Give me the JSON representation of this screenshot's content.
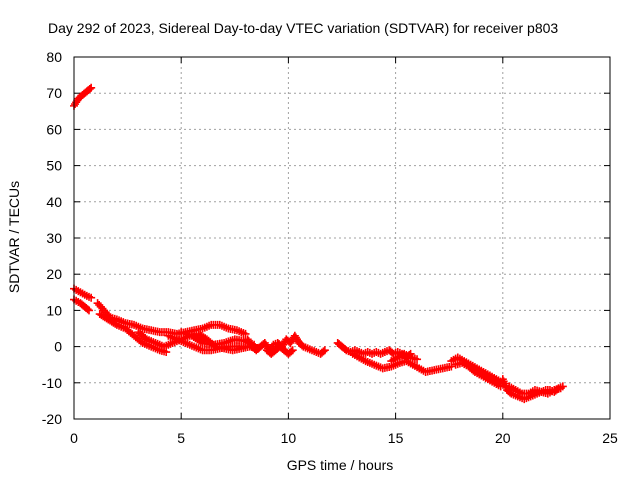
{
  "chart_data": {
    "type": "scatter",
    "title": "Day 292 of 2023, Sidereal Day-to-day VTEC variation (SDTVAR) for receiver p803",
    "xlabel": "GPS time / hours",
    "ylabel": "SDTVAR / TECUs",
    "xlim": [
      0,
      25
    ],
    "ylim": [
      -20,
      80
    ],
    "xticks": [
      0,
      5,
      10,
      15,
      20,
      25
    ],
    "yticks": [
      -20,
      -10,
      0,
      10,
      20,
      30,
      40,
      50,
      60,
      70,
      80
    ],
    "grid": true,
    "marker": "+",
    "series": [
      {
        "name": "SDTVAR",
        "color": "#ff0000",
        "segments": [
          [
            [
              0.0,
              66.5
            ],
            [
              0.2,
              68.5
            ],
            [
              0.4,
              69.5
            ],
            [
              0.6,
              70.5
            ],
            [
              0.8,
              71.5
            ]
          ],
          [
            [
              0.0,
              16
            ],
            [
              0.3,
              15
            ],
            [
              0.6,
              14
            ],
            [
              0.8,
              13.5
            ]
          ],
          [
            [
              0.0,
              13
            ],
            [
              0.3,
              12
            ],
            [
              0.5,
              11
            ],
            [
              0.7,
              10
            ]
          ],
          [
            [
              1.1,
              12
            ],
            [
              1.4,
              10
            ],
            [
              1.7,
              8
            ],
            [
              2.0,
              7.5
            ],
            [
              2.4,
              6.5
            ],
            [
              2.8,
              6
            ],
            [
              3.2,
              5
            ],
            [
              3.6,
              4.5
            ],
            [
              4.0,
              4
            ],
            [
              4.4,
              4
            ],
            [
              4.8,
              3.5
            ],
            [
              5.2,
              4
            ],
            [
              5.6,
              4.5
            ],
            [
              6.0,
              5
            ],
            [
              6.4,
              6
            ],
            [
              6.8,
              6
            ],
            [
              7.2,
              5
            ],
            [
              7.6,
              4.5
            ],
            [
              8.0,
              3.5
            ]
          ],
          [
            [
              1.2,
              9
            ],
            [
              1.6,
              7.5
            ],
            [
              2.0,
              6
            ],
            [
              2.4,
              5
            ],
            [
              2.8,
              3
            ],
            [
              3.2,
              1
            ],
            [
              3.6,
              0
            ],
            [
              4.0,
              -1
            ],
            [
              4.3,
              -1.5
            ]
          ],
          [
            [
              3.0,
              4
            ],
            [
              3.4,
              2
            ],
            [
              3.8,
              1
            ],
            [
              4.2,
              0
            ],
            [
              4.6,
              1
            ],
            [
              5.0,
              2
            ],
            [
              5.4,
              3
            ],
            [
              5.8,
              3.5
            ],
            [
              6.2,
              2
            ],
            [
              6.6,
              0
            ],
            [
              7.0,
              -0.5
            ],
            [
              7.4,
              -1
            ],
            [
              7.8,
              -0.5
            ],
            [
              8.2,
              0
            ],
            [
              8.6,
              -0.5
            ]
          ],
          [
            [
              4.4,
              3
            ],
            [
              4.8,
              2
            ],
            [
              5.2,
              1
            ],
            [
              5.6,
              0
            ],
            [
              6.0,
              -1
            ],
            [
              6.4,
              -1
            ],
            [
              6.8,
              -0.5
            ],
            [
              7.2,
              0
            ],
            [
              7.6,
              0
            ],
            [
              8.0,
              0
            ]
          ],
          [
            [
              5.0,
              4
            ],
            [
              5.5,
              3
            ],
            [
              6.0,
              1
            ],
            [
              6.5,
              0.5
            ],
            [
              7.0,
              1
            ],
            [
              7.5,
              2
            ],
            [
              8.0,
              1.5
            ],
            [
              8.4,
              0.5
            ]
          ],
          [
            [
              8.1,
              2
            ],
            [
              8.3,
              0
            ],
            [
              8.5,
              -1
            ],
            [
              8.7,
              0
            ],
            [
              8.9,
              1
            ],
            [
              9.1,
              -1
            ],
            [
              9.3,
              0.5
            ],
            [
              9.5,
              1
            ],
            [
              9.7,
              0
            ],
            [
              9.9,
              2
            ],
            [
              10.1,
              1
            ],
            [
              10.3,
              3
            ],
            [
              10.5,
              1
            ],
            [
              10.7,
              0
            ],
            [
              10.9,
              -0.5
            ],
            [
              11.1,
              -1
            ],
            [
              11.3,
              -1.5
            ],
            [
              11.5,
              -2
            ],
            [
              11.7,
              -1
            ]
          ],
          [
            [
              9.0,
              -1
            ],
            [
              9.2,
              -2
            ],
            [
              9.4,
              -1
            ],
            [
              9.6,
              0
            ],
            [
              9.8,
              -1
            ],
            [
              10.0,
              -2
            ],
            [
              10.2,
              -1
            ]
          ],
          [
            [
              12.3,
              1
            ],
            [
              12.5,
              0
            ],
            [
              12.7,
              -1
            ],
            [
              12.9,
              -1.5
            ],
            [
              13.1,
              -1
            ],
            [
              13.3,
              -1.5
            ],
            [
              13.5,
              -2
            ],
            [
              13.7,
              -1.5
            ],
            [
              13.9,
              -2
            ],
            [
              14.1,
              -1.5
            ],
            [
              14.3,
              -2
            ],
            [
              14.5,
              -1.5
            ],
            [
              14.7,
              -1
            ],
            [
              14.9,
              -2
            ],
            [
              15.1,
              -1.5
            ],
            [
              15.3,
              -2
            ],
            [
              15.5,
              -3
            ],
            [
              15.7,
              -2
            ]
          ],
          [
            [
              13.0,
              -2
            ],
            [
              13.3,
              -3
            ],
            [
              13.6,
              -4
            ],
            [
              14.0,
              -5
            ],
            [
              14.4,
              -6
            ],
            [
              14.8,
              -5.5
            ],
            [
              15.2,
              -4.5
            ],
            [
              15.5,
              -4
            ],
            [
              15.8,
              -5
            ],
            [
              16.1,
              -6
            ],
            [
              16.4,
              -7
            ],
            [
              16.8,
              -6.5
            ],
            [
              17.2,
              -6
            ],
            [
              17.6,
              -5.5
            ]
          ],
          [
            [
              14.8,
              -4
            ],
            [
              15.1,
              -3
            ],
            [
              15.4,
              -2
            ],
            [
              15.7,
              -3
            ],
            [
              16.0,
              -3.5
            ]
          ],
          [
            [
              17.6,
              -4
            ],
            [
              17.9,
              -3
            ],
            [
              18.2,
              -4
            ],
            [
              18.5,
              -5
            ],
            [
              18.8,
              -6
            ],
            [
              19.1,
              -7
            ],
            [
              19.4,
              -8
            ],
            [
              19.7,
              -9
            ],
            [
              20.0,
              -10
            ]
          ],
          [
            [
              17.8,
              -5
            ],
            [
              18.1,
              -4.5
            ],
            [
              18.4,
              -5.5
            ],
            [
              18.7,
              -7
            ],
            [
              19.0,
              -8
            ],
            [
              19.3,
              -9
            ],
            [
              19.6,
              -10
            ],
            [
              19.9,
              -11
            ]
          ],
          [
            [
              20.0,
              -9
            ],
            [
              20.2,
              -12
            ],
            [
              20.4,
              -13
            ],
            [
              20.6,
              -13.5
            ],
            [
              20.8,
              -14
            ],
            [
              21.0,
              -14.5
            ],
            [
              21.2,
              -14
            ],
            [
              21.4,
              -13.5
            ],
            [
              21.6,
              -13
            ],
            [
              21.8,
              -12.5
            ],
            [
              22.0,
              -12
            ],
            [
              22.2,
              -12
            ],
            [
              22.4,
              -12.5
            ],
            [
              22.6,
              -11.5
            ],
            [
              22.8,
              -11
            ]
          ],
          [
            [
              20.3,
              -11
            ],
            [
              20.6,
              -12
            ],
            [
              20.9,
              -13
            ],
            [
              21.2,
              -13
            ],
            [
              21.5,
              -12
            ],
            [
              21.8,
              -12.5
            ],
            [
              22.1,
              -13
            ],
            [
              22.4,
              -12
            ],
            [
              22.7,
              -11.5
            ]
          ]
        ]
      }
    ]
  }
}
